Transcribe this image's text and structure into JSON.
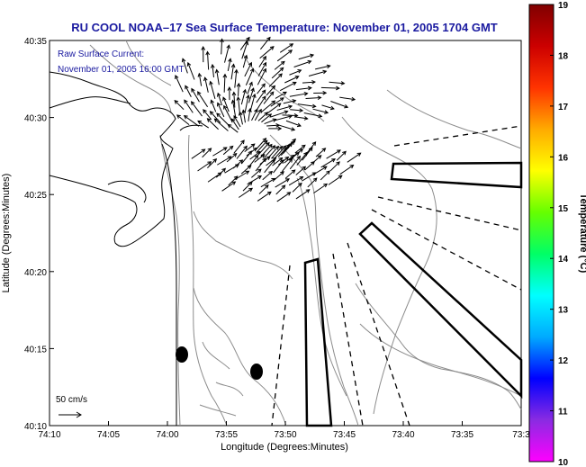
{
  "chart_data": {
    "type": "map",
    "title": "RU COOL  NOAA–17  Sea Surface Temperature:  November 01, 2005 1704 GMT",
    "annotation_lines": [
      "Raw Surface Current:",
      "November 01, 2005 16:00 GMT"
    ],
    "xlabel": "Longitude (Degrees:Minutes)",
    "ylabel": "Latitude (Degrees:Minutes)",
    "x_ticks": [
      "74:10",
      "74:05",
      "74:00",
      "73:55",
      "73:50",
      "73:45",
      "73:40",
      "73:35",
      "73:3"
    ],
    "y_ticks": [
      "40:35",
      "40:30",
      "40:25",
      "40:20",
      "40:15",
      "40:10"
    ],
    "xlim_minutes_west": [
      10,
      30
    ],
    "ylim_minutes_north": [
      10,
      35
    ],
    "scale_label": "50 cm/s",
    "colorbar": {
      "label": "Temperature (°C)",
      "range": [
        10,
        19
      ],
      "ticks": [
        "19",
        "18",
        "17",
        "16",
        "15",
        "14",
        "13",
        "12",
        "11",
        "10"
      ],
      "colors": [
        "#ff00ff",
        "#8a2be2",
        "#0000ff",
        "#00aaff",
        "#00ffff",
        "#00ff66",
        "#66ff00",
        "#ffff00",
        "#ffaa00",
        "#ff3300",
        "#cc0000",
        "#800000"
      ]
    },
    "grid": false,
    "legend": "none",
    "colors": {
      "title": "#1a1aa0",
      "vectors": "#000000",
      "coastline": "#000000",
      "bathymetry": "#888888"
    }
  }
}
